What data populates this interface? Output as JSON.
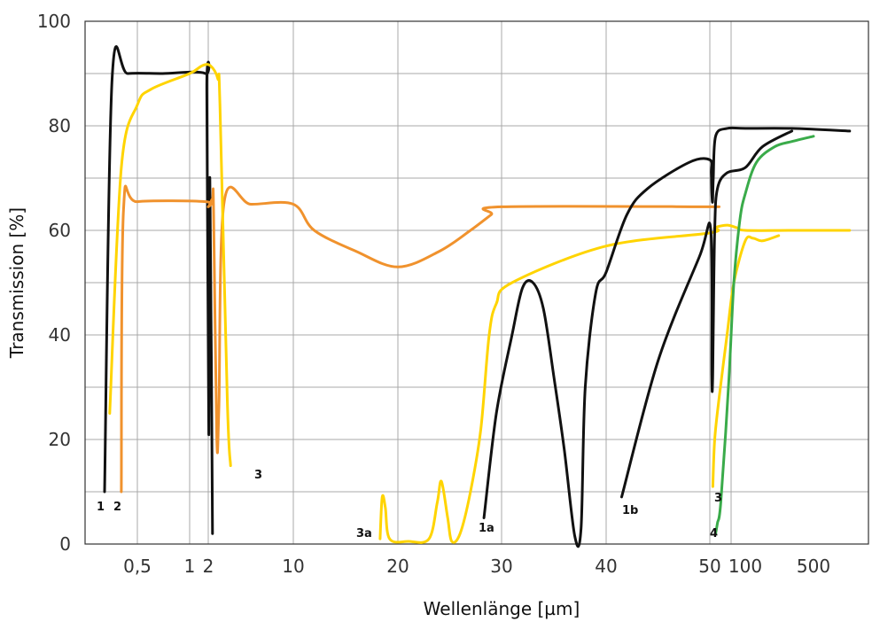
{
  "chart_data": {
    "type": "line",
    "xlabel": "Wellenlänge [µm]",
    "ylabel": "Transmission [%]",
    "ylim": [
      0,
      100
    ],
    "grid": true,
    "yticks": [
      "0",
      "20",
      "40",
      "60",
      "80",
      "100"
    ],
    "xticks": [
      "0,5",
      "1",
      "2",
      "10",
      "20",
      "30",
      "40",
      "50",
      "100",
      "500"
    ],
    "xtick_values": [
      0.5,
      1,
      2,
      10,
      20,
      30,
      40,
      50,
      100,
      500
    ],
    "series": [
      {
        "name": "1",
        "color": "#111111",
        "points": [
          [
            0.35,
            10
          ],
          [
            0.38,
            89
          ],
          [
            0.45,
            90
          ],
          [
            0.7,
            90
          ],
          [
            1.8,
            90
          ],
          [
            1.9,
            86
          ],
          [
            2.05,
            21
          ],
          [
            2.15,
            70
          ],
          [
            2.4,
            2
          ]
        ]
      },
      {
        "name": "2",
        "color": "#f0922d",
        "points": [
          [
            0.42,
            10
          ],
          [
            0.43,
            64
          ],
          [
            0.5,
            65.5
          ],
          [
            1.8,
            65.5
          ],
          [
            2.0,
            64.5
          ],
          [
            2.4,
            66
          ],
          [
            2.5,
            64
          ],
          [
            2.8,
            20.5
          ],
          [
            3.0,
            26
          ],
          [
            3.5,
            65.5
          ],
          [
            6,
            65
          ],
          [
            10,
            65
          ],
          [
            12,
            60
          ],
          [
            16,
            56
          ],
          [
            20,
            53
          ],
          [
            24,
            56
          ],
          [
            27,
            60
          ],
          [
            29,
            63
          ],
          [
            30,
            64.5
          ],
          [
            60,
            64.5
          ]
        ]
      },
      {
        "name": "3",
        "color": "#ffd400",
        "points": [
          [
            0.37,
            25
          ],
          [
            0.42,
            72
          ],
          [
            0.5,
            84
          ],
          [
            0.6,
            87
          ],
          [
            1,
            90
          ],
          [
            1.6,
            91.5
          ],
          [
            2.2,
            91.5
          ],
          [
            2.9,
            89
          ],
          [
            3.1,
            84
          ],
          [
            3.8,
            27
          ],
          [
            4.1,
            15
          ]
        ]
      },
      {
        "name": "3a",
        "color": "#ffd400",
        "points": [
          [
            18.3,
            1
          ],
          [
            18.5,
            9
          ],
          [
            18.8,
            7
          ],
          [
            19.2,
            1
          ],
          [
            21,
            0.5
          ],
          [
            23,
            1
          ],
          [
            23.8,
            8
          ],
          [
            24.2,
            12
          ],
          [
            24.8,
            5
          ],
          [
            25.2,
            0.5
          ],
          [
            26,
            2
          ],
          [
            27,
            10
          ],
          [
            28,
            22
          ],
          [
            28.8,
            40
          ],
          [
            29.5,
            46
          ],
          [
            31,
            50
          ],
          [
            40,
            57
          ],
          [
            50,
            59.5
          ],
          [
            55,
            60.5
          ],
          [
            70,
            61
          ],
          [
            85,
            60.5
          ],
          [
            100,
            60
          ],
          [
            300,
            60
          ],
          [
            700,
            60
          ]
        ]
      },
      {
        "name": "1a",
        "color": "#111111",
        "points": [
          [
            28.3,
            5
          ],
          [
            29.5,
            25
          ],
          [
            31,
            40
          ],
          [
            32,
            49
          ],
          [
            33,
            50
          ],
          [
            34,
            45
          ],
          [
            35,
            32
          ],
          [
            36,
            18
          ],
          [
            37,
            1.5
          ],
          [
            37.6,
            3
          ],
          [
            38,
            30
          ],
          [
            39,
            48
          ],
          [
            40,
            52
          ],
          [
            42,
            63
          ],
          [
            44,
            68
          ],
          [
            48,
            73
          ],
          [
            50,
            73.5
          ],
          [
            51.5,
            71
          ],
          [
            52,
            67
          ],
          [
            52.8,
            65.5
          ],
          [
            53.5,
            70
          ],
          [
            56,
            78
          ],
          [
            70,
            79.5
          ],
          [
            100,
            79.5
          ],
          [
            300,
            79.5
          ],
          [
            700,
            79
          ]
        ]
      },
      {
        "name": "1b",
        "color": "#111111",
        "points": [
          [
            41.5,
            9
          ],
          [
            45,
            35
          ],
          [
            49,
            55
          ],
          [
            51,
            60
          ],
          [
            52,
            32
          ],
          [
            52.8,
            31
          ],
          [
            53.4,
            40
          ],
          [
            55,
            60
          ],
          [
            58,
            68
          ],
          [
            70,
            71
          ],
          [
            100,
            72
          ],
          [
            150,
            76
          ],
          [
            300,
            79
          ]
        ]
      },
      {
        "name": "3",
        "color": "#ffd400",
        "points": [
          [
            53,
            11
          ],
          [
            55,
            20
          ],
          [
            60,
            28
          ],
          [
            70,
            40
          ],
          [
            80,
            50
          ],
          [
            100,
            58
          ],
          [
            120,
            58.5
          ],
          [
            150,
            58
          ],
          [
            220,
            59
          ]
        ]
      },
      {
        "name": "4",
        "color": "#3aab4a",
        "points": [
          [
            56,
            2
          ],
          [
            58,
            4
          ],
          [
            62,
            8
          ],
          [
            72,
            30
          ],
          [
            80,
            50
          ],
          [
            90,
            62
          ],
          [
            100,
            67
          ],
          [
            130,
            73
          ],
          [
            200,
            76
          ],
          [
            300,
            77
          ],
          [
            500,
            78
          ]
        ]
      }
    ]
  }
}
